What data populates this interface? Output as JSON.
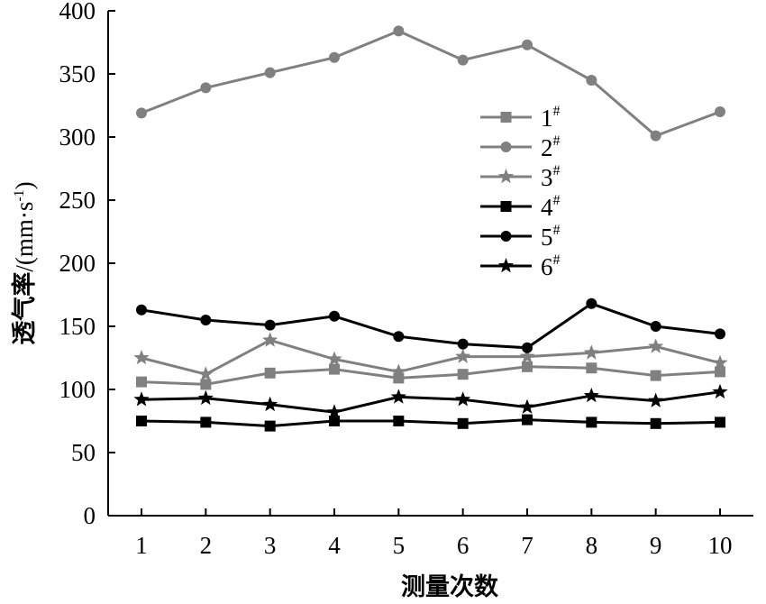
{
  "chart_data": {
    "type": "line",
    "xlabel": "测量次数",
    "ylabel_main": "透气率",
    "ylabel_unit_prefix": "/(mm·s",
    "ylabel_unit_sup": "-1",
    "ylabel_unit_suffix": ")",
    "x": [
      1,
      2,
      3,
      4,
      5,
      6,
      7,
      8,
      9,
      10
    ],
    "ylim": [
      0,
      400
    ],
    "yticks": [
      0,
      50,
      100,
      150,
      200,
      250,
      300,
      350,
      400
    ],
    "grid": false,
    "legend_position": "top-right",
    "series": [
      {
        "name": "1",
        "name_sup": "#",
        "color": "#808080",
        "marker": "square",
        "values": [
          106,
          104,
          113,
          116,
          109,
          112,
          118,
          117,
          111,
          114
        ]
      },
      {
        "name": "2",
        "name_sup": "#",
        "color": "#808080",
        "marker": "circle",
        "values": [
          319,
          339,
          351,
          363,
          384,
          361,
          373,
          345,
          301,
          320
        ]
      },
      {
        "name": "3",
        "name_sup": "#",
        "color": "#808080",
        "marker": "star",
        "values": [
          125,
          112,
          139,
          124,
          114,
          126,
          126,
          129,
          134,
          121
        ]
      },
      {
        "name": "4",
        "name_sup": "#",
        "color": "#000000",
        "marker": "square",
        "values": [
          75,
          74,
          71,
          75,
          75,
          73,
          76,
          74,
          73,
          74
        ]
      },
      {
        "name": "5",
        "name_sup": "#",
        "color": "#000000",
        "marker": "circle",
        "values": [
          163,
          155,
          151,
          158,
          142,
          136,
          133,
          168,
          150,
          144
        ]
      },
      {
        "name": "6",
        "name_sup": "#",
        "color": "#000000",
        "marker": "star",
        "values": [
          92,
          93,
          88,
          82,
          94,
          92,
          86,
          95,
          91,
          98
        ]
      }
    ]
  }
}
